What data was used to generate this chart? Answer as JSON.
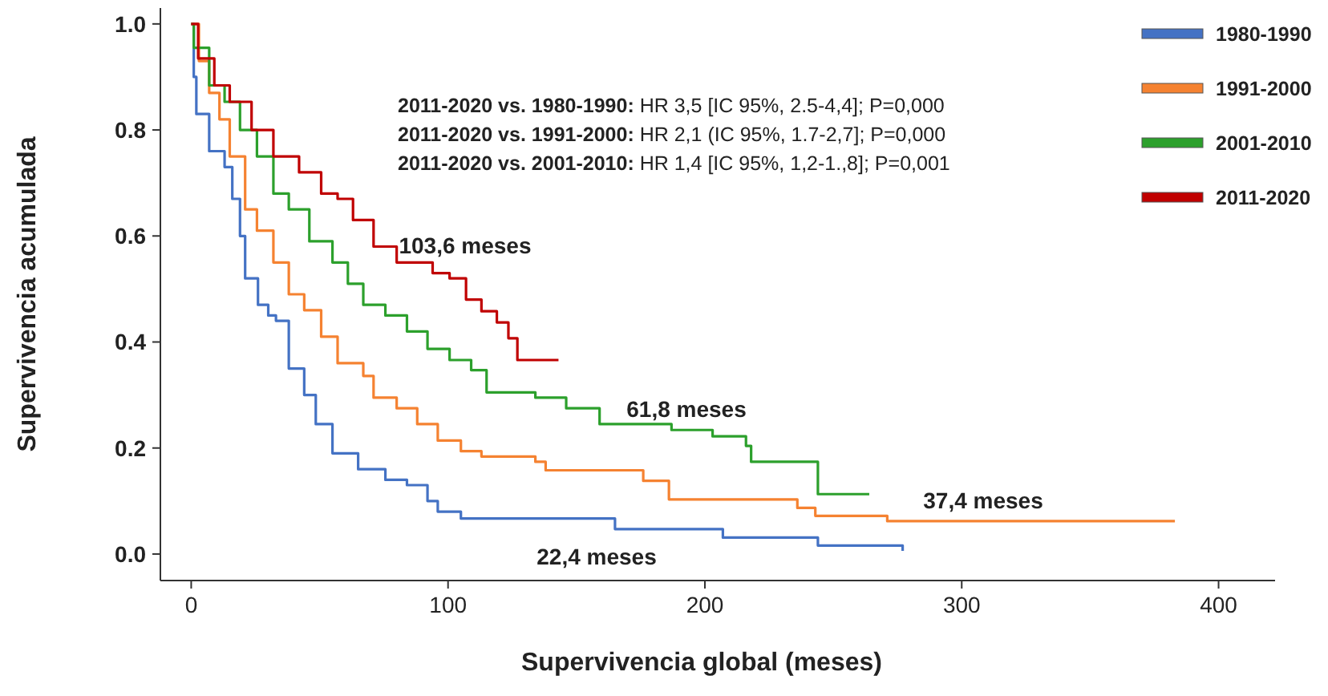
{
  "chart_data": {
    "type": "step",
    "xlabel": "Supervivencia global (meses)",
    "ylabel": "Supervivencia acumulada",
    "xlim": [
      -12,
      422
    ],
    "ylim": [
      -0.05,
      1.03
    ],
    "xticks": [
      0,
      100,
      200,
      300,
      400
    ],
    "yticks": [
      {
        "value": 0,
        "label": "0.0"
      },
      {
        "value": 0.2,
        "label": "0.2"
      },
      {
        "value": 0.4,
        "label": "0.4"
      },
      {
        "value": 0.6,
        "label": "0.6"
      },
      {
        "value": 0.8,
        "label": "0.8"
      },
      {
        "value": 1,
        "label": "1.0"
      }
    ],
    "grid": false,
    "legend": "top right",
    "line_style": "solid",
    "marker": "none",
    "series": [
      {
        "name": "1980-1990",
        "color": "#4472c4",
        "x": [
          0,
          1,
          2,
          7,
          13,
          16,
          19,
          21,
          26,
          30,
          33,
          38,
          44,
          48.5,
          55,
          65,
          75.6,
          84,
          92,
          96,
          105,
          165,
          207,
          244,
          277
        ],
        "values": [
          1,
          0.9,
          0.83,
          0.76,
          0.73,
          0.67,
          0.6,
          0.52,
          0.47,
          0.45,
          0.44,
          0.35,
          0.3,
          0.245,
          0.19,
          0.16,
          0.14,
          0.13,
          0.1,
          0.08,
          0.067,
          0.047,
          0.031,
          0.016,
          0.006
        ]
      },
      {
        "name": "1991-2000",
        "color": "#f58231",
        "x": [
          0,
          3,
          7,
          11,
          15,
          21,
          25.6,
          32,
          38,
          44,
          50.6,
          57,
          67,
          71,
          80,
          88,
          96,
          105,
          113,
          134,
          138,
          176,
          186,
          236,
          243,
          271,
          383
        ],
        "values": [
          1,
          0.93,
          0.87,
          0.82,
          0.75,
          0.65,
          0.61,
          0.55,
          0.49,
          0.46,
          0.41,
          0.36,
          0.336,
          0.295,
          0.275,
          0.245,
          0.214,
          0.194,
          0.184,
          0.174,
          0.158,
          0.138,
          0.103,
          0.087,
          0.072,
          0.062,
          0.062
        ]
      },
      {
        "name": "2001-2010",
        "color": "#2ca02c",
        "x": [
          0,
          1,
          7,
          13,
          19,
          25.6,
          32,
          38,
          46,
          55,
          61,
          67,
          75.6,
          84,
          92,
          100.6,
          109,
          115,
          134,
          146,
          159,
          187,
          203,
          216,
          218,
          244,
          264
        ],
        "values": [
          1,
          0.955,
          0.884,
          0.853,
          0.8,
          0.75,
          0.68,
          0.65,
          0.59,
          0.55,
          0.51,
          0.47,
          0.45,
          0.42,
          0.387,
          0.366,
          0.347,
          0.305,
          0.295,
          0.275,
          0.245,
          0.234,
          0.222,
          0.204,
          0.174,
          0.113,
          0.113
        ]
      },
      {
        "name": "2011-2020",
        "color": "#c00000",
        "x": [
          0,
          2.7,
          9,
          15,
          23.5,
          32,
          42,
          50.6,
          57,
          63,
          71,
          80,
          94,
          100.6,
          107,
          113,
          119,
          123.5,
          127,
          143
        ],
        "values": [
          1,
          0.935,
          0.884,
          0.853,
          0.8,
          0.75,
          0.72,
          0.68,
          0.67,
          0.63,
          0.58,
          0.55,
          0.53,
          0.52,
          0.48,
          0.458,
          0.437,
          0.407,
          0.366,
          0.366
        ]
      }
    ],
    "annotations": [
      "2011-2020 vs. 1980-1990: HR 3,5 [IC 95%, 2.5-4,4]; P=0,000",
      "2011-2020 vs. 1991-2000: HR 2,1 (IC 95%, 1.7-2,7]; P=0,000",
      "2011-2020 vs. 2001-2010: HR 1,4 [IC 95%, 1,2-1.,8]; P=0,001",
      "103,6 meses",
      "61,8 meses",
      "37,4 meses",
      "22,4 meses"
    ]
  }
}
